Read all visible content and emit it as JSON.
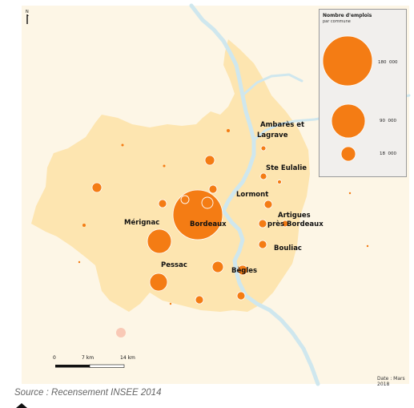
{
  "map": {
    "north_label": "N",
    "colors": {
      "background": "#fdf6e6",
      "territory": "#fde5b0",
      "river": "#cfe7ee",
      "bubble": "#f47c14",
      "bubble_faint": "#f9c9b6"
    },
    "places": [
      {
        "label_lines": [
          "Ambarès et",
          "Lagrave"
        ],
        "jobs": 1800
      },
      {
        "label_lines": [
          "Ste Eulalie"
        ],
        "jobs": 2500
      },
      {
        "label_lines": [
          "Lormont"
        ],
        "jobs": 4500
      },
      {
        "label_lines": [
          "Artigues",
          "près Bordeaux"
        ],
        "jobs": 3500
      },
      {
        "label_lines": [
          "Bouliac"
        ],
        "jobs": 2000
      },
      {
        "label_lines": [
          "Mérignac"
        ],
        "jobs": 42000
      },
      {
        "label_lines": [
          "Bordeaux"
        ],
        "jobs": 180000
      },
      {
        "label_lines": [
          "Pessac"
        ],
        "jobs": 25000
      },
      {
        "label_lines": [
          "Bègles"
        ],
        "jobs": 9000
      }
    ]
  },
  "legend": {
    "title": "Nombre d'emplois",
    "subtitle": "par commune",
    "items": [
      {
        "value": "180  000",
        "jobs": 180000
      },
      {
        "value": "90  000",
        "jobs": 90000
      },
      {
        "value": "18  000",
        "jobs": 18000
      }
    ]
  },
  "scale": {
    "labels": [
      "0",
      "7 km",
      "14 km"
    ]
  },
  "date_note": "Date : Mars 2018",
  "source": "Source : Recensement INSEE 2014"
}
